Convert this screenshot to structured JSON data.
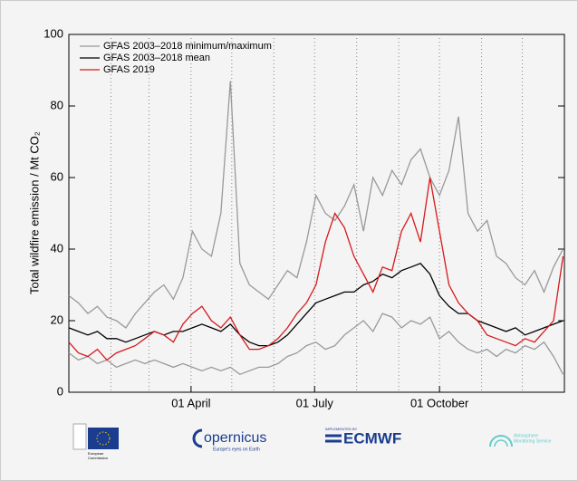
{
  "chart_data": {
    "type": "line",
    "ylabel": "Total wildfire emission / Mt CO₂",
    "x": [
      1,
      8,
      15,
      22,
      29,
      36,
      43,
      50,
      57,
      64,
      71,
      78,
      85,
      92,
      99,
      106,
      113,
      120,
      127,
      134,
      141,
      148,
      155,
      162,
      169,
      176,
      183,
      190,
      197,
      204,
      211,
      218,
      225,
      232,
      239,
      246,
      253,
      260,
      267,
      274,
      281,
      288,
      295,
      302,
      309,
      316,
      323,
      330,
      337,
      344,
      351,
      358,
      365
    ],
    "xlim": [
      1,
      366
    ],
    "xticks": [
      {
        "value": 91,
        "label": "01 April"
      },
      {
        "value": 182,
        "label": "01 July"
      },
      {
        "value": 274,
        "label": "01 October"
      }
    ],
    "xgrid": [
      32,
      60,
      91,
      121,
      152,
      182,
      213,
      244,
      274,
      305,
      335
    ],
    "ylim": [
      0,
      100
    ],
    "yticks": [
      0,
      20,
      40,
      60,
      80,
      100
    ],
    "legend": "upper left",
    "series": [
      {
        "name": "GFAS 2003–2018 minimum/maximum",
        "color": "#999999",
        "values": [
          11,
          9,
          10,
          8,
          9,
          7,
          8,
          9,
          8,
          9,
          8,
          7,
          8,
          7,
          6,
          7,
          6,
          7,
          5,
          6,
          7,
          7,
          8,
          10,
          11,
          13,
          14,
          12,
          13,
          16,
          18,
          20,
          17,
          22,
          21,
          18,
          20,
          19,
          21,
          15,
          17,
          14,
          12,
          11,
          12,
          10,
          12,
          11,
          13,
          12,
          14,
          10,
          5
        ],
        "max": [
          27,
          25,
          22,
          24,
          21,
          20,
          18,
          22,
          25,
          28,
          30,
          26,
          32,
          45,
          40,
          38,
          50,
          87,
          36,
          30,
          28,
          26,
          30,
          34,
          32,
          42,
          55,
          50,
          48,
          52,
          58,
          45,
          60,
          55,
          62,
          58,
          65,
          68,
          60,
          55,
          62,
          77,
          50,
          45,
          48,
          38,
          36,
          32,
          30,
          34,
          28,
          35,
          40
        ]
      },
      {
        "name": "GFAS 2003–2018 mean",
        "color": "#000000",
        "values": [
          18,
          17,
          16,
          17,
          15,
          15,
          14,
          15,
          16,
          17,
          16,
          17,
          17,
          18,
          19,
          18,
          17,
          19,
          16,
          14,
          13,
          13,
          14,
          16,
          19,
          22,
          25,
          26,
          27,
          28,
          28,
          30,
          31,
          33,
          32,
          34,
          35,
          36,
          33,
          27,
          24,
          22,
          22,
          20,
          19,
          18,
          17,
          18,
          16,
          17,
          18,
          19,
          20
        ]
      },
      {
        "name": "GFAS 2019",
        "color": "#d7191c",
        "values": [
          14,
          11,
          10,
          12,
          9,
          11,
          12,
          13,
          15,
          17,
          16,
          14,
          19,
          22,
          24,
          20,
          18,
          21,
          16,
          12,
          12,
          13,
          15,
          18,
          22,
          25,
          30,
          42,
          50,
          46,
          38,
          33,
          28,
          35,
          34,
          45,
          50,
          42,
          60,
          45,
          30,
          25,
          22,
          20,
          16,
          15,
          14,
          13,
          15,
          14,
          17,
          20,
          38
        ]
      }
    ]
  },
  "footer": {
    "ec": [
      "European",
      "Commission"
    ],
    "copernicus": "opernicus",
    "copernicus_tag": "Europe's eyes on Earth",
    "implemented": "IMPLEMENTED BY",
    "ecmwf": "ECMWF",
    "cams": [
      "Atmosphere",
      "Monitoring Service"
    ]
  }
}
